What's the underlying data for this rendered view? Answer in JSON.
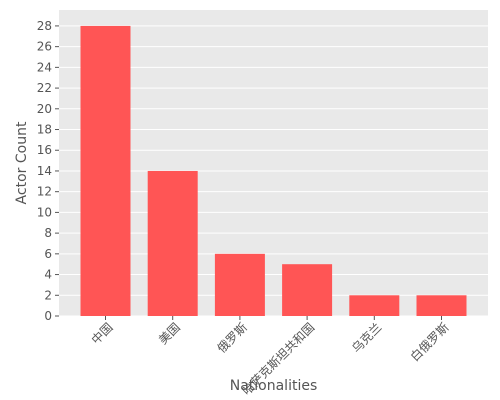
{
  "chart_data": {
    "type": "bar",
    "title": "",
    "xlabel": "Nationalities",
    "ylabel": "Actor Count",
    "categories": [
      "中国",
      "美国",
      "俄罗斯",
      "哈萨克斯坦共和国",
      "乌克兰",
      "白俄罗斯"
    ],
    "values": [
      28,
      14,
      6,
      5,
      2,
      2
    ],
    "ylim": [
      0,
      29
    ],
    "yticks": [
      0,
      2,
      4,
      6,
      8,
      10,
      12,
      14,
      16,
      18,
      20,
      22,
      24,
      26,
      28
    ],
    "grid": true,
    "colors": {
      "bar": "#ff5555",
      "plot_background": "#e9e9e9",
      "grid": "#ffffff",
      "text": "#555555"
    }
  }
}
